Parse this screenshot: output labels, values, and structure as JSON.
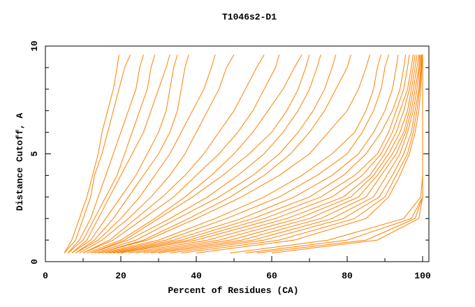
{
  "chart_data": {
    "type": "line",
    "title": "T1046s2-D1",
    "xlabel": "Percent of Residues (CA)",
    "ylabel": "Distance Cutoff, A",
    "xlim": [
      0,
      100
    ],
    "ylim": [
      0,
      10
    ],
    "x_ticks": [
      "0",
      "20",
      "40",
      "60",
      "80",
      "100"
    ],
    "y_ticks": [
      "0",
      "5",
      "10"
    ],
    "grid": false,
    "legend": "none",
    "line_color": "#ff8000",
    "cutoffs": [
      0.4,
      1,
      2,
      3,
      4,
      5,
      6,
      7,
      8,
      9,
      9.6
    ],
    "series": [
      {
        "x": [
          5,
          7,
          9,
          11,
          12.5,
          14,
          15,
          16.5,
          18,
          19,
          19.5
        ]
      },
      {
        "x": [
          5,
          8,
          10,
          12,
          13,
          15,
          16.5,
          18,
          19.5,
          21,
          22.5
        ]
      },
      {
        "x": [
          6,
          9,
          12,
          14,
          16,
          18,
          20,
          22,
          24,
          25,
          26
        ]
      },
      {
        "x": [
          6,
          10,
          13,
          16,
          19,
          21,
          23,
          25,
          27,
          28,
          29
        ]
      },
      {
        "x": [
          7,
          11,
          14,
          17,
          20,
          23,
          26,
          28,
          30,
          32,
          33
        ]
      },
      {
        "x": [
          7,
          12,
          16,
          20,
          24,
          27,
          30,
          32,
          33,
          34,
          35
        ]
      },
      {
        "x": [
          8,
          13,
          18,
          22,
          26,
          30,
          33,
          35,
          36,
          37,
          38
        ]
      },
      {
        "x": [
          8,
          14,
          20,
          25,
          29,
          33,
          36,
          39,
          42,
          44,
          45
        ]
      },
      {
        "x": [
          9,
          15,
          22,
          28,
          33,
          37,
          40,
          43,
          46,
          48,
          50
        ]
      },
      {
        "x": [
          10,
          17,
          24,
          31,
          37,
          42,
          46,
          50,
          53,
          56,
          58
        ]
      },
      {
        "x": [
          10,
          18,
          26,
          34,
          40,
          46,
          51,
          55,
          58,
          61,
          62
        ]
      },
      {
        "x": [
          11,
          20,
          29,
          37,
          44,
          50,
          55,
          59,
          63,
          66,
          68
        ]
      },
      {
        "x": [
          12,
          21,
          30,
          39,
          47,
          54,
          60,
          64,
          67,
          69,
          70
        ]
      },
      {
        "x": [
          12,
          22,
          33,
          43,
          51,
          58,
          63,
          67,
          70,
          72,
          73
        ]
      },
      {
        "x": [
          13,
          24,
          35,
          46,
          55,
          62,
          67,
          71,
          74,
          76,
          77
        ]
      },
      {
        "x": [
          14,
          26,
          38,
          49,
          58,
          65,
          70,
          74,
          77,
          80,
          81
        ]
      },
      {
        "x": [
          14,
          27,
          40,
          52,
          62,
          70,
          75,
          80,
          83,
          85,
          86
        ]
      },
      {
        "x": [
          15,
          30,
          45,
          58,
          68,
          76,
          82,
          85,
          87,
          88,
          89
        ]
      },
      {
        "x": [
          16,
          32,
          48,
          62,
          72,
          80,
          84,
          87,
          89,
          90,
          91
        ]
      },
      {
        "x": [
          17,
          34,
          52,
          66,
          76,
          83,
          87,
          90,
          92,
          93,
          93.5
        ]
      },
      {
        "x": [
          18,
          36,
          55,
          70,
          79,
          85,
          89,
          92,
          94,
          95,
          95.5
        ]
      },
      {
        "x": [
          19,
          38,
          58,
          73,
          82,
          88,
          91,
          93,
          95,
          96,
          96.5
        ]
      },
      {
        "x": [
          20,
          40,
          61,
          76,
          84,
          89,
          92,
          94,
          96,
          97,
          97.5
        ]
      },
      {
        "x": [
          22,
          43,
          64,
          79,
          86,
          90,
          93,
          95,
          96.5,
          97.5,
          98
        ]
      },
      {
        "x": [
          24,
          46,
          67,
          81,
          87,
          91,
          94,
          96,
          97,
          98,
          98.5
        ]
      },
      {
        "x": [
          26,
          49,
          70,
          83,
          88,
          92,
          95,
          96.5,
          97.5,
          98.5,
          99
        ]
      },
      {
        "x": [
          28,
          52,
          73,
          85,
          89,
          93,
          95.5,
          97,
          98,
          99,
          99.2
        ]
      },
      {
        "x": [
          30,
          55,
          76,
          87,
          90.5,
          94,
          96,
          97.5,
          98.5,
          99.2,
          99.5
        ]
      },
      {
        "x": [
          33,
          58,
          79,
          88.5,
          92,
          95,
          97,
          98,
          99,
          99.5,
          99.7
        ]
      },
      {
        "x": [
          36,
          62,
          82,
          90,
          93,
          96,
          97.5,
          98.5,
          99.2,
          99.7,
          99.8
        ]
      },
      {
        "x": [
          40,
          66,
          85,
          91,
          94,
          96.5,
          98,
          99,
          99.5,
          99.8,
          100
        ]
      },
      {
        "x": [
          49,
          75,
          95,
          99.5,
          100,
          100,
          100,
          100,
          100,
          100,
          100
        ]
      },
      {
        "x": [
          53,
          80,
          97,
          100,
          100,
          100,
          100,
          100,
          100,
          100,
          100
        ]
      },
      {
        "x": [
          56,
          85,
          98,
          100,
          100,
          100,
          100,
          100,
          100,
          100,
          100
        ]
      },
      {
        "x": [
          60,
          88,
          99,
          100,
          100,
          100,
          100,
          100,
          100,
          100,
          100
        ]
      }
    ]
  }
}
